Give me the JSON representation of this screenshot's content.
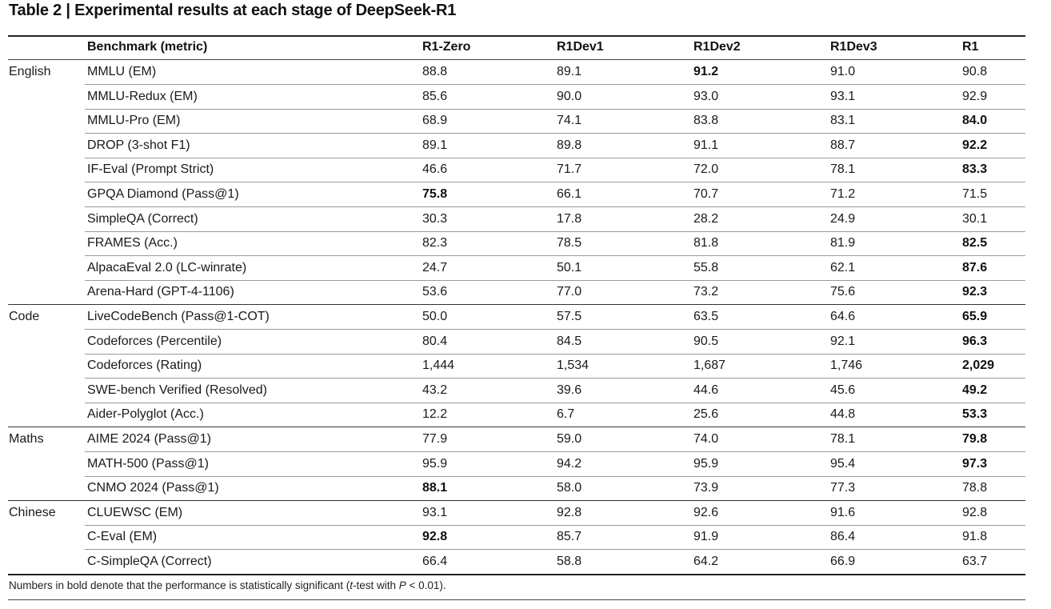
{
  "title": "Table 2 | Experimental results at each stage of DeepSeek-R1",
  "headers": [
    "Benchmark (metric)",
    "R1-Zero",
    "R1Dev1",
    "R1Dev2",
    "R1Dev3",
    "R1"
  ],
  "groups": [
    {
      "name": "English",
      "rows": [
        {
          "benchmark": "MMLU (EM)",
          "values": [
            "88.8",
            "89.1",
            "91.2",
            "91.0",
            "90.8"
          ],
          "bold": [
            2
          ]
        },
        {
          "benchmark": "MMLU-Redux (EM)",
          "values": [
            "85.6",
            "90.0",
            "93.0",
            "93.1",
            "92.9"
          ],
          "bold": []
        },
        {
          "benchmark": "MMLU-Pro (EM)",
          "values": [
            "68.9",
            "74.1",
            "83.8",
            "83.1",
            "84.0"
          ],
          "bold": [
            4
          ]
        },
        {
          "benchmark": "DROP (3-shot F1)",
          "values": [
            "89.1",
            "89.8",
            "91.1",
            "88.7",
            "92.2"
          ],
          "bold": [
            4
          ]
        },
        {
          "benchmark": "IF-Eval (Prompt Strict)",
          "values": [
            "46.6",
            "71.7",
            "72.0",
            "78.1",
            "83.3"
          ],
          "bold": [
            4
          ]
        },
        {
          "benchmark": "GPQA Diamond (Pass@1)",
          "values": [
            "75.8",
            "66.1",
            "70.7",
            "71.2",
            "71.5"
          ],
          "bold": [
            0
          ]
        },
        {
          "benchmark": "SimpleQA (Correct)",
          "values": [
            "30.3",
            "17.8",
            "28.2",
            "24.9",
            "30.1"
          ],
          "bold": []
        },
        {
          "benchmark": "FRAMES (Acc.)",
          "values": [
            "82.3",
            "78.5",
            "81.8",
            "81.9",
            "82.5"
          ],
          "bold": [
            4
          ]
        },
        {
          "benchmark": "AlpacaEval 2.0 (LC-winrate)",
          "values": [
            "24.7",
            "50.1",
            "55.8",
            "62.1",
            "87.6"
          ],
          "bold": [
            4
          ]
        },
        {
          "benchmark": "Arena-Hard (GPT-4-1106)",
          "values": [
            "53.6",
            "77.0",
            "73.2",
            "75.6",
            "92.3"
          ],
          "bold": [
            4
          ]
        }
      ]
    },
    {
      "name": "Code",
      "rows": [
        {
          "benchmark": "LiveCodeBench (Pass@1-COT)",
          "values": [
            "50.0",
            "57.5",
            "63.5",
            "64.6",
            "65.9"
          ],
          "bold": [
            4
          ]
        },
        {
          "benchmark": "Codeforces (Percentile)",
          "values": [
            "80.4",
            "84.5",
            "90.5",
            "92.1",
            "96.3"
          ],
          "bold": [
            4
          ]
        },
        {
          "benchmark": "Codeforces (Rating)",
          "values": [
            "1,444",
            "1,534",
            "1,687",
            "1,746",
            "2,029"
          ],
          "bold": [
            4
          ]
        },
        {
          "benchmark": "SWE-bench Verified (Resolved)",
          "values": [
            "43.2",
            "39.6",
            "44.6",
            "45.6",
            "49.2"
          ],
          "bold": [
            4
          ]
        },
        {
          "benchmark": "Aider-Polyglot (Acc.)",
          "values": [
            "12.2",
            "6.7",
            "25.6",
            "44.8",
            "53.3"
          ],
          "bold": [
            4
          ]
        }
      ]
    },
    {
      "name": "Maths",
      "rows": [
        {
          "benchmark": "AIME 2024 (Pass@1)",
          "values": [
            "77.9",
            "59.0",
            "74.0",
            "78.1",
            "79.8"
          ],
          "bold": [
            4
          ]
        },
        {
          "benchmark": "MATH-500 (Pass@1)",
          "values": [
            "95.9",
            "94.2",
            "95.9",
            "95.4",
            "97.3"
          ],
          "bold": [
            4
          ]
        },
        {
          "benchmark": "CNMO 2024 (Pass@1)",
          "values": [
            "88.1",
            "58.0",
            "73.9",
            "77.3",
            "78.8"
          ],
          "bold": [
            0
          ]
        }
      ]
    },
    {
      "name": "Chinese",
      "rows": [
        {
          "benchmark": "CLUEWSC (EM)",
          "values": [
            "93.1",
            "92.8",
            "92.6",
            "91.6",
            "92.8"
          ],
          "bold": []
        },
        {
          "benchmark": "C-Eval (EM)",
          "values": [
            "92.8",
            "85.7",
            "91.9",
            "86.4",
            "91.8"
          ],
          "bold": [
            0
          ]
        },
        {
          "benchmark": "C-SimpleQA (Correct)",
          "values": [
            "66.4",
            "58.8",
            "64.2",
            "66.9",
            "63.7"
          ],
          "bold": []
        }
      ]
    }
  ],
  "footnote": {
    "pre": "Numbers in bold denote that the performance is statistically significant (",
    "t": "t",
    "mid": "-test with ",
    "p": "P",
    "post": " < 0.01)."
  }
}
